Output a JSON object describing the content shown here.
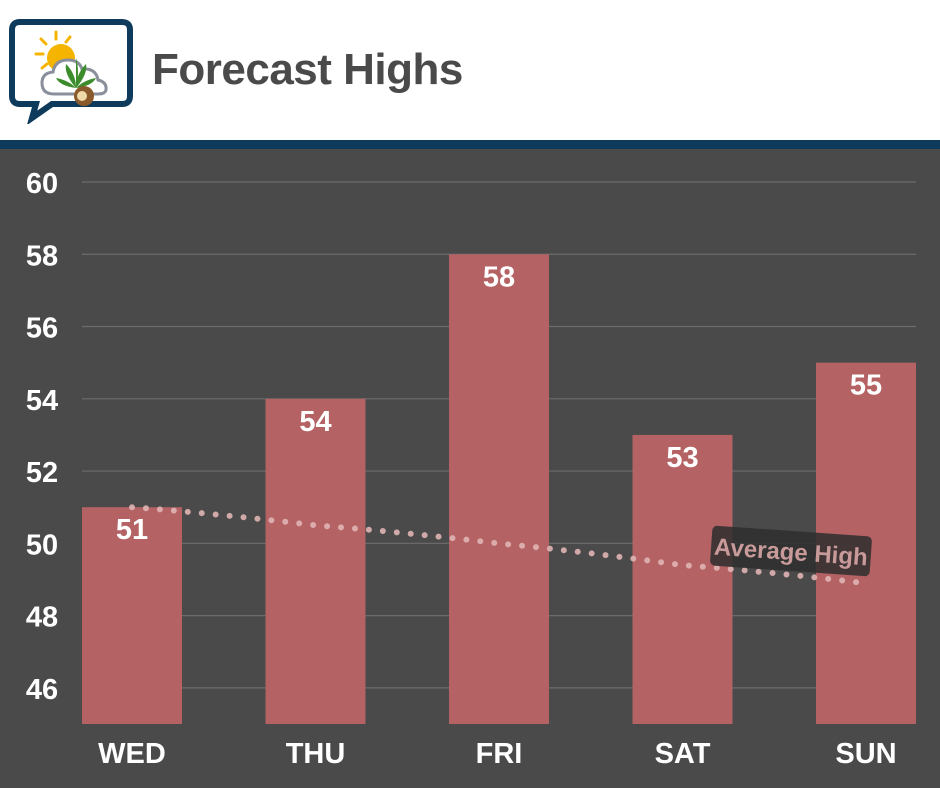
{
  "header": {
    "title": "Forecast Highs",
    "logo_icon": "weather-cannabis-logo-icon"
  },
  "colors": {
    "header_bg": "#ffffff",
    "header_rule": "#0e3a5c",
    "plot_bg": "#4a4a4a",
    "bar": "#b46264",
    "gridline": "#6c6c6c",
    "text": "#ffffff",
    "average_line": "#e0b4b4"
  },
  "chart_data": {
    "type": "bar",
    "categories": [
      "WED",
      "THU",
      "FRI",
      "SAT",
      "SUN"
    ],
    "values": [
      51,
      54,
      58,
      53,
      55
    ],
    "data_labels": [
      "51",
      "54",
      "58",
      "53",
      "55"
    ],
    "yticks": [
      "60",
      "58",
      "56",
      "54",
      "52",
      "50",
      "48",
      "46"
    ],
    "ylim": [
      45,
      60
    ],
    "grid": true,
    "average_high": {
      "label": "Average High",
      "x": [
        "WED",
        "THU",
        "FRI",
        "SAT",
        "SUN"
      ],
      "values": [
        51,
        50.5,
        50,
        49.4,
        48.9
      ],
      "style": "dotted"
    }
  }
}
